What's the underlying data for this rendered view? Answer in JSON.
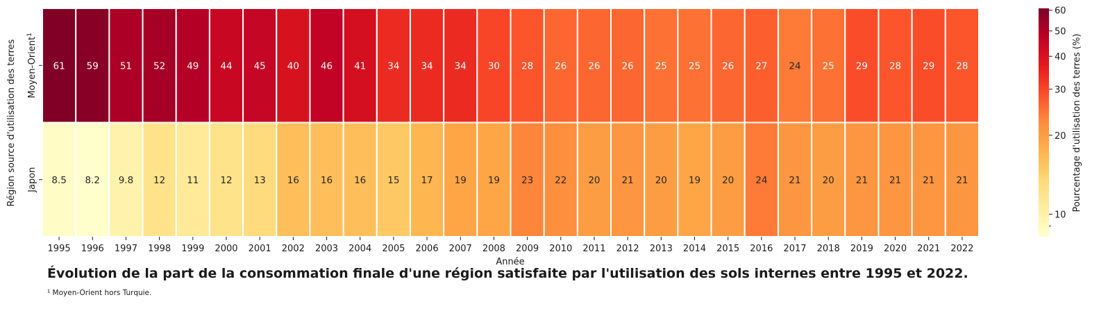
{
  "chart_data": {
    "type": "heatmap",
    "title": "Évolution de la part de la consommation finale d'une région satisfaite par l'utilisation des sols internes entre 1995 et 2022.",
    "xlabel": "Année",
    "ylabel": "Région source d'utilisation des terres",
    "x": [
      "1995",
      "1996",
      "1997",
      "1998",
      "1999",
      "2000",
      "2001",
      "2002",
      "2003",
      "2004",
      "2005",
      "2006",
      "2007",
      "2008",
      "2009",
      "2010",
      "2011",
      "2012",
      "2013",
      "2014",
      "2015",
      "2016",
      "2017",
      "2018",
      "2019",
      "2020",
      "2021",
      "2022"
    ],
    "rows": [
      {
        "label": "Moyen-Orient",
        "superscript": "1",
        "values": [
          61,
          59,
          51,
          52,
          49,
          44,
          45,
          40,
          46,
          41,
          34,
          34,
          34,
          30,
          28,
          26,
          26,
          26,
          25,
          25,
          26,
          27,
          24,
          25,
          29,
          28,
          29,
          28
        ],
        "display": [
          "61",
          "59",
          "51",
          "52",
          "49",
          "44",
          "45",
          "40",
          "46",
          "41",
          "34",
          "34",
          "34",
          "30",
          "28",
          "26",
          "26",
          "26",
          "25",
          "25",
          "26",
          "27",
          "24",
          "25",
          "29",
          "28",
          "29",
          "28"
        ]
      },
      {
        "label": "Japon",
        "superscript": "",
        "values": [
          8.5,
          8.2,
          9.8,
          12,
          11,
          12,
          13,
          16,
          16,
          16,
          15,
          17,
          19,
          19,
          23,
          22,
          20,
          21,
          20,
          19,
          20,
          24,
          21,
          20,
          21,
          21,
          21,
          21
        ],
        "display": [
          "8.5",
          "8.2",
          "9.8",
          "12",
          "11",
          "12",
          "13",
          "16",
          "16",
          "16",
          "15",
          "17",
          "19",
          "19",
          "23",
          "22",
          "20",
          "21",
          "20",
          "19",
          "20",
          "24",
          "21",
          "20",
          "21",
          "21",
          "21",
          "21"
        ]
      }
    ],
    "colorbar": {
      "label": "Pourcentage d'utilisation des terres (%)",
      "scale": "log",
      "range": [
        8.2,
        61
      ],
      "ticks": [
        10,
        20,
        30,
        40,
        50,
        60
      ],
      "tick_labels": [
        "10",
        "20",
        "30",
        "40",
        "50",
        "60"
      ],
      "colormap": "YlOrRd"
    },
    "footnote": "¹ Moyen-Orient hors Turquie."
  }
}
